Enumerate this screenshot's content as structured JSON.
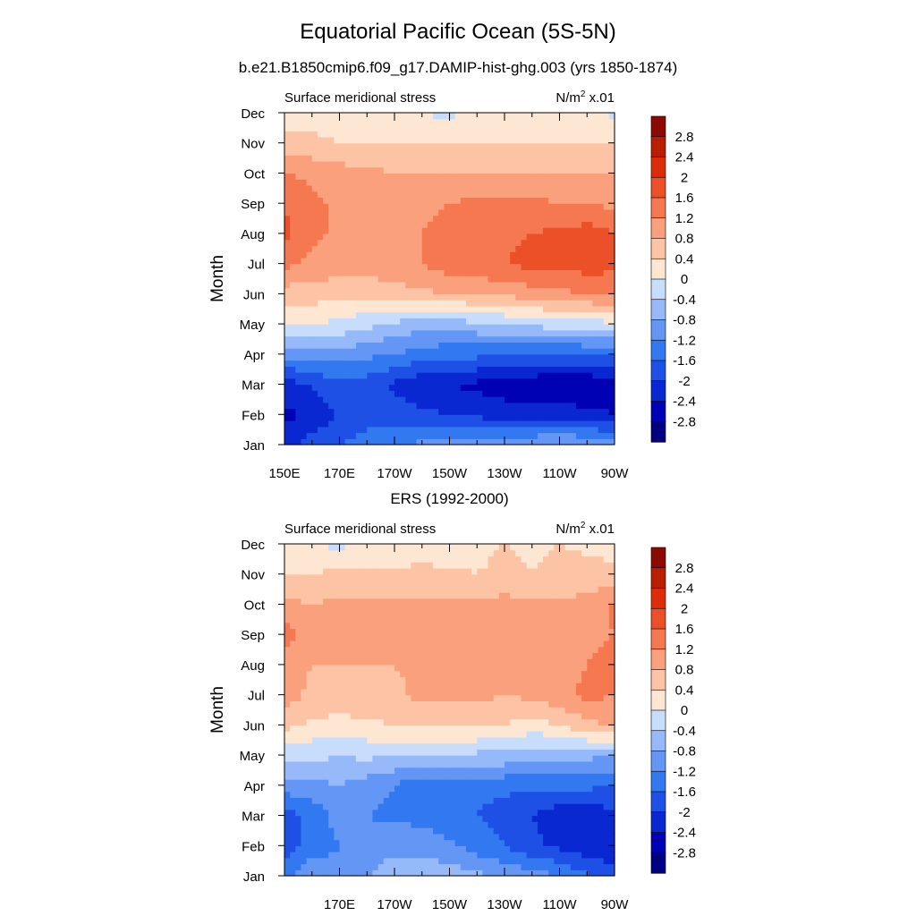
{
  "header": {
    "title": "Equatorial Pacific Ocean (5S-5N)",
    "case": "b.e21.B1850cmip6.f09_g17.DAMIP-hist-ghg.003 (yrs 1850-1874)",
    "obs_title": "ERS (1992-2000)"
  },
  "chart_data": [
    {
      "type": "heatmap",
      "title": "",
      "left_label": "Surface meridional stress",
      "units": "N/m",
      "units_sup": "2",
      "units_scale": "x.01",
      "ylabel": "Month",
      "xlabel": "",
      "x_ticks": [
        "150E",
        "170E",
        "170W",
        "150W",
        "130W",
        "110W",
        "90W"
      ],
      "y_ticks": [
        "Jan",
        "Feb",
        "Mar",
        "Apr",
        "May",
        "Jun",
        "Jul",
        "Aug",
        "Sep",
        "Oct",
        "Nov",
        "Dec"
      ],
      "x_lon": [
        150,
        160,
        170,
        180,
        190,
        200,
        210,
        220,
        230,
        240,
        250,
        260,
        270
      ],
      "colorbar": [
        "2.8",
        "2.4",
        "2",
        "1.6",
        "1.2",
        "0.8",
        "0.4",
        "0",
        "-0.4",
        "-0.8",
        "-1.2",
        "-1.6",
        "-2",
        "-2.4",
        "-2.8"
      ],
      "values": [
        [
          -2.2,
          -1.8,
          -1.6,
          -1.4,
          -1.2,
          -1.1,
          -1.0,
          -0.9,
          -0.8,
          -0.8,
          -0.7,
          -0.8,
          -1.0
        ],
        [
          -2.5,
          -2.3,
          -2.0,
          -1.8,
          -1.8,
          -1.9,
          -2.0,
          -2.1,
          -2.2,
          -2.2,
          -2.2,
          -2.3,
          -2.4
        ],
        [
          -2.2,
          -2.0,
          -1.7,
          -1.8,
          -2.1,
          -2.3,
          -2.4,
          -2.5,
          -2.6,
          -2.7,
          -2.7,
          -2.8,
          -2.6
        ],
        [
          -1.1,
          -1.0,
          -1.0,
          -1.1,
          -1.2,
          -1.4,
          -1.5,
          -1.5,
          -1.6,
          -1.7,
          -1.7,
          -1.6,
          -1.5
        ],
        [
          0.1,
          0.0,
          -0.1,
          -0.3,
          -0.5,
          -0.6,
          -0.6,
          -0.5,
          -0.4,
          -0.3,
          -0.2,
          -0.2,
          -0.1
        ],
        [
          0.6,
          0.6,
          0.5,
          0.5,
          0.6,
          0.7,
          0.8,
          0.8,
          0.9,
          1.0,
          1.1,
          1.2,
          1.3
        ],
        [
          1.3,
          1.1,
          1.0,
          1.0,
          1.1,
          1.2,
          1.4,
          1.5,
          1.6,
          1.7,
          1.7,
          1.8,
          1.7
        ],
        [
          1.7,
          1.3,
          1.1,
          1.1,
          1.1,
          1.2,
          1.3,
          1.4,
          1.5,
          1.6,
          1.7,
          1.8,
          1.6
        ],
        [
          1.6,
          1.3,
          1.1,
          1.0,
          1.0,
          1.1,
          1.2,
          1.3,
          1.3,
          1.3,
          1.2,
          1.2,
          1.1
        ],
        [
          1.2,
          1.1,
          1.0,
          0.9,
          0.8,
          0.8,
          0.8,
          0.8,
          0.8,
          0.8,
          0.8,
          0.8,
          0.8
        ],
        [
          0.6,
          0.5,
          0.4,
          0.4,
          0.4,
          0.4,
          0.4,
          0.4,
          0.4,
          0.4,
          0.4,
          0.4,
          0.4
        ],
        [
          0.2,
          0.2,
          0.1,
          0.1,
          0.1,
          0.0,
          -0.1,
          0.1,
          0.1,
          0.1,
          0.1,
          0.1,
          -0.1
        ]
      ]
    },
    {
      "type": "heatmap",
      "title": "",
      "left_label": "Surface meridional stress",
      "units": "N/m",
      "units_sup": "2",
      "units_scale": "x.01",
      "ylabel": "Month",
      "xlabel": "",
      "x_ticks": [
        "170E",
        "170W",
        "150W",
        "130W",
        "110W",
        "90W"
      ],
      "y_ticks": [
        "Jan",
        "Feb",
        "Mar",
        "Apr",
        "May",
        "Jun",
        "Jul",
        "Aug",
        "Sep",
        "Oct",
        "Nov",
        "Dec"
      ],
      "x_lon": [
        150,
        160,
        170,
        180,
        190,
        200,
        210,
        220,
        230,
        240,
        250,
        260,
        270
      ],
      "colorbar": [
        "2.8",
        "2.4",
        "2",
        "1.6",
        "1.2",
        "0.8",
        "0.4",
        "0",
        "-0.4",
        "-0.8",
        "-1.2",
        "-1.6",
        "-2",
        "-2.4",
        "-2.8"
      ],
      "values": [
        [
          -1.4,
          -0.9,
          -1.1,
          -0.8,
          -0.6,
          -0.5,
          -0.6,
          -0.7,
          -0.9,
          -1.0,
          -1.2,
          -1.5,
          -1.9
        ],
        [
          -1.9,
          -1.4,
          -1.2,
          -1.0,
          -0.9,
          -1.0,
          -1.1,
          -1.4,
          -1.6,
          -1.9,
          -2.1,
          -2.3,
          -2.2
        ],
        [
          -1.8,
          -1.5,
          -1.0,
          -1.2,
          -1.3,
          -1.3,
          -1.5,
          -1.6,
          -1.8,
          -2.0,
          -2.3,
          -2.3,
          -2.1
        ],
        [
          -1.0,
          -0.9,
          -0.8,
          -1.0,
          -1.2,
          -1.5,
          -1.5,
          -1.5,
          -1.5,
          -1.5,
          -1.5,
          -1.5,
          -1.6
        ],
        [
          -0.3,
          -0.3,
          -0.4,
          -0.3,
          -0.4,
          -0.5,
          -0.5,
          -0.5,
          -0.5,
          -0.6,
          -0.7,
          -0.7,
          -0.8
        ],
        [
          0.5,
          0.3,
          0.3,
          0.3,
          0.4,
          0.5,
          0.5,
          0.5,
          0.4,
          0.2,
          0.4,
          0.7,
          0.8
        ],
        [
          1.0,
          0.7,
          0.6,
          0.7,
          0.7,
          0.9,
          0.9,
          0.9,
          0.8,
          0.9,
          1.1,
          1.3,
          1.2
        ],
        [
          1.0,
          0.8,
          0.8,
          0.8,
          0.8,
          0.9,
          1.0,
          1.0,
          0.9,
          0.9,
          1.0,
          1.2,
          1.4
        ],
        [
          1.4,
          0.9,
          0.8,
          0.9,
          1.0,
          1.0,
          0.9,
          0.9,
          0.9,
          0.9,
          0.9,
          1.1,
          1.2
        ],
        [
          0.9,
          0.8,
          0.9,
          0.9,
          0.9,
          0.9,
          0.9,
          0.9,
          0.9,
          0.9,
          0.9,
          0.9,
          1.3
        ],
        [
          0.4,
          0.4,
          0.5,
          0.5,
          0.5,
          0.5,
          0.5,
          0.4,
          0.6,
          0.4,
          0.5,
          0.6,
          0.5
        ],
        [
          0.1,
          0.0,
          -0.1,
          0.1,
          0.1,
          0.2,
          0.1,
          0.2,
          0.4,
          0.3,
          0.4,
          0.3,
          0.2
        ]
      ]
    }
  ]
}
